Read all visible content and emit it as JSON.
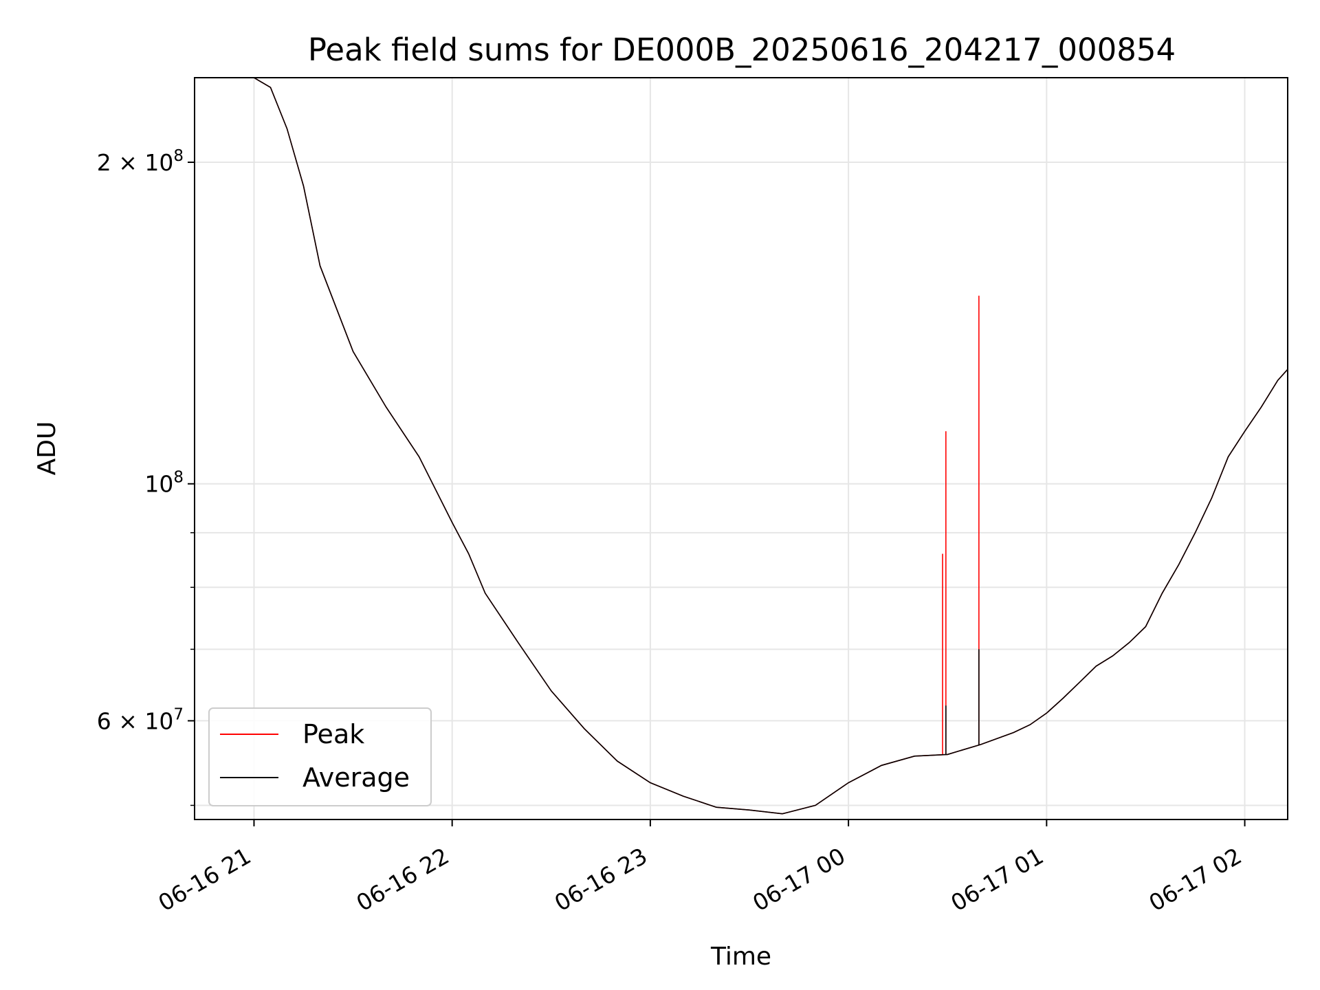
{
  "chart_data": {
    "type": "line",
    "title": "Peak field sums for DE000B_20250616_204217_000854",
    "xlabel": "Time",
    "ylabel": "ADU",
    "y_scale": "log",
    "ylim": [
      48500000,
      240000000
    ],
    "xlim": [
      "2025-06-16T20:42:00",
      "2025-06-17T02:13:00"
    ],
    "grid": true,
    "legend_position": "lower-left",
    "x_ticks": [
      {
        "value": "2025-06-16T21:00:00",
        "label": "06-16 21"
      },
      {
        "value": "2025-06-16T22:00:00",
        "label": "06-16 22"
      },
      {
        "value": "2025-06-16T23:00:00",
        "label": "06-16 23"
      },
      {
        "value": "2025-06-17T00:00:00",
        "label": "06-17 00"
      },
      {
        "value": "2025-06-17T01:00:00",
        "label": "06-17 01"
      },
      {
        "value": "2025-06-17T02:00:00",
        "label": "06-17 02"
      }
    ],
    "y_major_ticks": [
      {
        "value": 200000000,
        "base": "2 × 10",
        "exp": "8"
      },
      {
        "value": 100000000,
        "base": "10",
        "exp": "8"
      },
      {
        "value": 60000000,
        "base": "6 × 10",
        "exp": "7"
      }
    ],
    "y_minor_ticks": [
      50000000,
      70000000,
      80000000,
      90000000
    ],
    "series": [
      {
        "name": "Peak",
        "color": "#ff0000",
        "points": [
          [
            "2025-06-16T20:42:00",
            240000000
          ],
          [
            "2025-06-16T21:00:00",
            240000000
          ],
          [
            "2025-06-16T21:05:00",
            235000000
          ],
          [
            "2025-06-16T21:10:00",
            215000000
          ],
          [
            "2025-06-16T21:15:00",
            190000000
          ],
          [
            "2025-06-16T21:20:00",
            160000000
          ],
          [
            "2025-06-16T21:30:00",
            133000000
          ],
          [
            "2025-06-16T21:40:00",
            118000000
          ],
          [
            "2025-06-16T21:50:00",
            106000000
          ],
          [
            "2025-06-16T22:00:00",
            92000000
          ],
          [
            "2025-06-16T22:05:00",
            86000000
          ],
          [
            "2025-06-16T22:10:00",
            79000000
          ],
          [
            "2025-06-16T22:20:00",
            71000000
          ],
          [
            "2025-06-16T22:30:00",
            64000000
          ],
          [
            "2025-06-16T22:40:00",
            59000000
          ],
          [
            "2025-06-16T22:50:00",
            55000000
          ],
          [
            "2025-06-16T23:00:00",
            52500000
          ],
          [
            "2025-06-16T23:10:00",
            51000000
          ],
          [
            "2025-06-16T23:20:00",
            49800000
          ],
          [
            "2025-06-16T23:30:00",
            49500000
          ],
          [
            "2025-06-16T23:40:00",
            49100000
          ],
          [
            "2025-06-16T23:50:00",
            50000000
          ],
          [
            "2025-06-17T00:00:00",
            52500000
          ],
          [
            "2025-06-17T00:10:00",
            54500000
          ],
          [
            "2025-06-17T00:20:00",
            55600000
          ],
          [
            "2025-06-17T00:30:00",
            55800000
          ],
          [
            "2025-06-17T00:40:00",
            57000000
          ],
          [
            "2025-06-17T00:50:00",
            58500000
          ],
          [
            "2025-06-17T00:55:00",
            59500000
          ],
          [
            "2025-06-17T01:00:00",
            61000000
          ],
          [
            "2025-06-17T01:05:00",
            63000000
          ],
          [
            "2025-06-17T01:10:00",
            65200000
          ],
          [
            "2025-06-17T01:15:00",
            67500000
          ],
          [
            "2025-06-17T01:20:00",
            69000000
          ],
          [
            "2025-06-17T01:25:00",
            71000000
          ],
          [
            "2025-06-17T01:30:00",
            73500000
          ],
          [
            "2025-06-17T01:35:00",
            79000000
          ],
          [
            "2025-06-17T01:40:00",
            84000000
          ],
          [
            "2025-06-17T01:45:00",
            90000000
          ],
          [
            "2025-06-17T01:50:00",
            97000000
          ],
          [
            "2025-06-17T01:55:00",
            106000000
          ],
          [
            "2025-06-17T02:00:00",
            112000000
          ],
          [
            "2025-06-17T02:05:00",
            118000000
          ],
          [
            "2025-06-17T02:10:00",
            125000000
          ],
          [
            "2025-06-17T02:13:00",
            128000000
          ]
        ],
        "spikes": [
          [
            "2025-06-17T00:28:30",
            86000000
          ],
          [
            "2025-06-17T00:29:30",
            112000000
          ],
          [
            "2025-06-17T00:39:30",
            150000000
          ]
        ]
      },
      {
        "name": "Average",
        "color": "#000000",
        "points": [
          [
            "2025-06-16T20:42:00",
            240000000
          ],
          [
            "2025-06-16T21:00:00",
            240000000
          ],
          [
            "2025-06-16T21:05:00",
            235000000
          ],
          [
            "2025-06-16T21:10:00",
            215000000
          ],
          [
            "2025-06-16T21:15:00",
            190000000
          ],
          [
            "2025-06-16T21:20:00",
            160000000
          ],
          [
            "2025-06-16T21:30:00",
            133000000
          ],
          [
            "2025-06-16T21:40:00",
            118000000
          ],
          [
            "2025-06-16T21:50:00",
            106000000
          ],
          [
            "2025-06-16T22:00:00",
            92000000
          ],
          [
            "2025-06-16T22:05:00",
            86000000
          ],
          [
            "2025-06-16T22:10:00",
            79000000
          ],
          [
            "2025-06-16T22:20:00",
            71000000
          ],
          [
            "2025-06-16T22:30:00",
            64000000
          ],
          [
            "2025-06-16T22:40:00",
            59000000
          ],
          [
            "2025-06-16T22:50:00",
            55000000
          ],
          [
            "2025-06-16T23:00:00",
            52500000
          ],
          [
            "2025-06-16T23:10:00",
            51000000
          ],
          [
            "2025-06-16T23:20:00",
            49800000
          ],
          [
            "2025-06-16T23:30:00",
            49500000
          ],
          [
            "2025-06-16T23:40:00",
            49100000
          ],
          [
            "2025-06-16T23:50:00",
            50000000
          ],
          [
            "2025-06-17T00:00:00",
            52500000
          ],
          [
            "2025-06-17T00:10:00",
            54500000
          ],
          [
            "2025-06-17T00:20:00",
            55600000
          ],
          [
            "2025-06-17T00:30:00",
            55800000
          ],
          [
            "2025-06-17T00:40:00",
            57000000
          ],
          [
            "2025-06-17T00:50:00",
            58500000
          ],
          [
            "2025-06-17T00:55:00",
            59500000
          ],
          [
            "2025-06-17T01:00:00",
            61000000
          ],
          [
            "2025-06-17T01:05:00",
            63000000
          ],
          [
            "2025-06-17T01:10:00",
            65200000
          ],
          [
            "2025-06-17T01:15:00",
            67500000
          ],
          [
            "2025-06-17T01:20:00",
            69000000
          ],
          [
            "2025-06-17T01:25:00",
            71000000
          ],
          [
            "2025-06-17T01:30:00",
            73500000
          ],
          [
            "2025-06-17T01:35:00",
            79000000
          ],
          [
            "2025-06-17T01:40:00",
            84000000
          ],
          [
            "2025-06-17T01:45:00",
            90000000
          ],
          [
            "2025-06-17T01:50:00",
            97000000
          ],
          [
            "2025-06-17T01:55:00",
            106000000
          ],
          [
            "2025-06-17T02:00:00",
            112000000
          ],
          [
            "2025-06-17T02:05:00",
            118000000
          ],
          [
            "2025-06-17T02:10:00",
            125000000
          ],
          [
            "2025-06-17T02:13:00",
            128000000
          ]
        ],
        "spikes": [
          [
            "2025-06-17T00:29:30",
            62000000
          ],
          [
            "2025-06-17T00:39:30",
            70000000
          ]
        ]
      }
    ]
  }
}
